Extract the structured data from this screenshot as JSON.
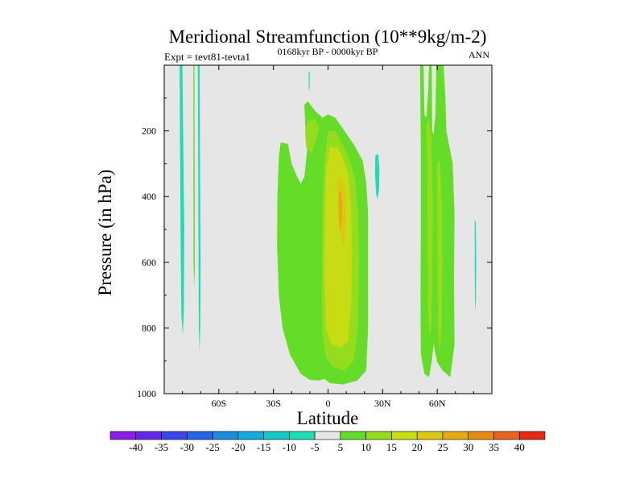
{
  "chart_data": {
    "type": "contour",
    "title": "Meridional Streamfunction (10**9kg/m-2)",
    "subtitle_left": "Expt = tevt81-tevta1",
    "subtitle_center": "0168kyr BP - 0000kyr BP",
    "subtitle_right": "ANN",
    "xlabel": "Latitude",
    "ylabel": "Pressure (in hPa)",
    "xlim": [
      -90,
      90
    ],
    "ylim": [
      0,
      1000
    ],
    "x_ticks": [
      {
        "value": -60,
        "label": "60S"
      },
      {
        "value": -30,
        "label": "30S"
      },
      {
        "value": 0,
        "label": "0"
      },
      {
        "value": 30,
        "label": "30N"
      },
      {
        "value": 60,
        "label": "60N"
      }
    ],
    "y_ticks": [
      {
        "value": 200,
        "label": "200"
      },
      {
        "value": 400,
        "label": "400"
      },
      {
        "value": 600,
        "label": "600"
      },
      {
        "value": 800,
        "label": "800"
      },
      {
        "value": 1000,
        "label": "1000"
      }
    ],
    "background_color": "#e6e6e6",
    "colorbar": {
      "levels": [
        "-40",
        "-35",
        "-30",
        "-25",
        "-20",
        "-15",
        "-10",
        "-5",
        "5",
        "10",
        "15",
        "20",
        "25",
        "30",
        "35",
        "40"
      ],
      "colors": [
        "#8a1ee6",
        "#6428e6",
        "#3c46e6",
        "#2864e6",
        "#1e8cdc",
        "#14aadc",
        "#14c8c8",
        "#1edcb4",
        "#e6e6e6",
        "#64dc28",
        "#96dc1e",
        "#c8dc14",
        "#dcc814",
        "#e6aa14",
        "#e68c14",
        "#e6641e",
        "#e62814"
      ]
    },
    "regions": [
      {
        "name": "sh-cyan-strip-1",
        "level": "-5",
        "points": [
          [
            -81.5,
            0
          ],
          [
            -80,
            0
          ],
          [
            -79.5,
            250
          ],
          [
            -79,
            500
          ],
          [
            -79.2,
            750
          ],
          [
            -79.8,
            820
          ],
          [
            -80.6,
            760
          ],
          [
            -81,
            500
          ],
          [
            -81.3,
            250
          ]
        ]
      },
      {
        "name": "sh-cyan-strip-2",
        "level": "-5",
        "points": [
          [
            -71.5,
            0
          ],
          [
            -70.5,
            0
          ],
          [
            -70.3,
            300
          ],
          [
            -70,
            600
          ],
          [
            -70.2,
            800
          ],
          [
            -70.6,
            870
          ],
          [
            -71,
            800
          ],
          [
            -71.2,
            500
          ]
        ]
      },
      {
        "name": "sh-green-sliver",
        "level": "5",
        "points": [
          [
            -74,
            0
          ],
          [
            -73.4,
            0
          ],
          [
            -73.3,
            350
          ],
          [
            -73.2,
            620
          ],
          [
            -73.6,
            680
          ],
          [
            -73.9,
            600
          ]
        ]
      },
      {
        "name": "nh-cyan-blob",
        "level": "-5",
        "points": [
          [
            26,
            275
          ],
          [
            27.6,
            270
          ],
          [
            28.2,
            320
          ],
          [
            28,
            380
          ],
          [
            27.2,
            410
          ],
          [
            26.4,
            390
          ],
          [
            25.8,
            330
          ]
        ]
      },
      {
        "name": "nh-cyan-sliver",
        "level": "-5",
        "points": [
          [
            80.6,
            470
          ],
          [
            81.2,
            480
          ],
          [
            81.4,
            600
          ],
          [
            81.2,
            720
          ],
          [
            80.8,
            750
          ],
          [
            80.6,
            620
          ]
        ]
      },
      {
        "name": "eq-cyan-dot",
        "level": "-5",
        "points": [
          [
            -10.6,
            20
          ],
          [
            -10,
            20
          ],
          [
            -10.2,
            80
          ],
          [
            -10.6,
            70
          ]
        ]
      },
      {
        "name": "itcz-green-outer",
        "level": "5",
        "points": [
          [
            -26,
            235
          ],
          [
            -22,
            240
          ],
          [
            -20,
            300
          ],
          [
            -17,
            340
          ],
          [
            -15,
            360
          ],
          [
            -13,
            340
          ],
          [
            -11.5,
            260
          ],
          [
            -12.5,
            180
          ],
          [
            -13,
            120
          ],
          [
            -11,
            110
          ],
          [
            -7,
            140
          ],
          [
            -3,
            160
          ],
          [
            0,
            150
          ],
          [
            4,
            160
          ],
          [
            9,
            200
          ],
          [
            14,
            240
          ],
          [
            19,
            290
          ],
          [
            21,
            360
          ],
          [
            22,
            450
          ],
          [
            22,
            600
          ],
          [
            22,
            800
          ],
          [
            21,
            930
          ],
          [
            16,
            960
          ],
          [
            8,
            972
          ],
          [
            1,
            968
          ],
          [
            -2,
            955
          ],
          [
            -5,
            960
          ],
          [
            -10,
            958
          ],
          [
            -15,
            940
          ],
          [
            -21,
            880
          ],
          [
            -25,
            800
          ],
          [
            -27,
            700
          ],
          [
            -28,
            550
          ],
          [
            -27.8,
            400
          ],
          [
            -27,
            280
          ]
        ]
      },
      {
        "name": "itcz-lime-left",
        "level": "10",
        "points": [
          [
            -12.6,
            200
          ],
          [
            -11,
            170
          ],
          [
            -7,
            165
          ],
          [
            -5,
            190
          ],
          [
            -6.5,
            230
          ],
          [
            -9,
            270
          ],
          [
            -12,
            250
          ]
        ]
      },
      {
        "name": "itcz-lime-right",
        "level": "10",
        "points": [
          [
            -2,
            290
          ],
          [
            0,
            200
          ],
          [
            4,
            200
          ],
          [
            8,
            240
          ],
          [
            12,
            290
          ],
          [
            15,
            350
          ],
          [
            16.5,
            450
          ],
          [
            17,
            600
          ],
          [
            16.5,
            800
          ],
          [
            14,
            900
          ],
          [
            9,
            930
          ],
          [
            3,
            920
          ],
          [
            -1,
            890
          ],
          [
            -3,
            820
          ],
          [
            -3.5,
            700
          ],
          [
            -3.2,
            550
          ],
          [
            -3,
            420
          ]
        ]
      },
      {
        "name": "itcz-yellow",
        "level": "15",
        "points": [
          [
            -1,
            320
          ],
          [
            1,
            250
          ],
          [
            5,
            250
          ],
          [
            8,
            280
          ],
          [
            11,
            330
          ],
          [
            12.5,
            420
          ],
          [
            13,
            550
          ],
          [
            12.8,
            720
          ],
          [
            11,
            840
          ],
          [
            7,
            860
          ],
          [
            2,
            850
          ],
          [
            -1,
            800
          ],
          [
            -2,
            650
          ],
          [
            -1.8,
            480
          ]
        ]
      },
      {
        "name": "itcz-gold",
        "level": "20",
        "points": [
          [
            5,
            350
          ],
          [
            8,
            340
          ],
          [
            9.5,
            380
          ],
          [
            10,
            450
          ],
          [
            9.5,
            520
          ],
          [
            8,
            550
          ],
          [
            6.5,
            500
          ],
          [
            5.8,
            420
          ]
        ]
      },
      {
        "name": "itcz-orange",
        "level": "25",
        "points": [
          [
            5.8,
            390
          ],
          [
            7.2,
            380
          ],
          [
            7.8,
            420
          ],
          [
            7.6,
            480
          ],
          [
            6.8,
            510
          ],
          [
            6,
            470
          ],
          [
            5.7,
            430
          ]
        ]
      },
      {
        "name": "nh-green-band",
        "level": "5",
        "points": [
          [
            50.5,
            0
          ],
          [
            52.5,
            0
          ],
          [
            53,
            150
          ],
          [
            54,
            160
          ],
          [
            55,
            80
          ],
          [
            55.5,
            0
          ],
          [
            57,
            0
          ],
          [
            57.2,
            200
          ],
          [
            58,
            210
          ],
          [
            59,
            150
          ],
          [
            59.5,
            0
          ],
          [
            60.5,
            0
          ],
          [
            63.5,
            0
          ],
          [
            64.5,
            100
          ],
          [
            65,
            200
          ],
          [
            68.5,
            300
          ],
          [
            69.5,
            450
          ],
          [
            69.2,
            650
          ],
          [
            69.5,
            850
          ],
          [
            67.2,
            950
          ],
          [
            63,
            930
          ],
          [
            60,
            905
          ],
          [
            58,
            850
          ],
          [
            57,
            900
          ],
          [
            55.5,
            950
          ],
          [
            53,
            940
          ],
          [
            51,
            880
          ],
          [
            50.8,
            700
          ],
          [
            51,
            500
          ],
          [
            51,
            250
          ]
        ]
      },
      {
        "name": "nh-lime-band",
        "level": "10",
        "points": [
          [
            54,
            180
          ],
          [
            55.5,
            170
          ],
          [
            56.8,
            220
          ],
          [
            57.5,
            400
          ],
          [
            57.3,
            600
          ],
          [
            56.8,
            780
          ],
          [
            55.8,
            830
          ],
          [
            55,
            760
          ],
          [
            54.6,
            500
          ],
          [
            54.5,
            300
          ]
        ]
      },
      {
        "name": "nh-lime-band-2",
        "level": "10",
        "points": [
          [
            60,
            300
          ],
          [
            61.5,
            290
          ],
          [
            62.5,
            420
          ],
          [
            62.8,
            600
          ],
          [
            62.6,
            780
          ],
          [
            61.6,
            870
          ],
          [
            60.6,
            840
          ],
          [
            60.2,
            650
          ],
          [
            60,
            450
          ]
        ]
      }
    ]
  }
}
